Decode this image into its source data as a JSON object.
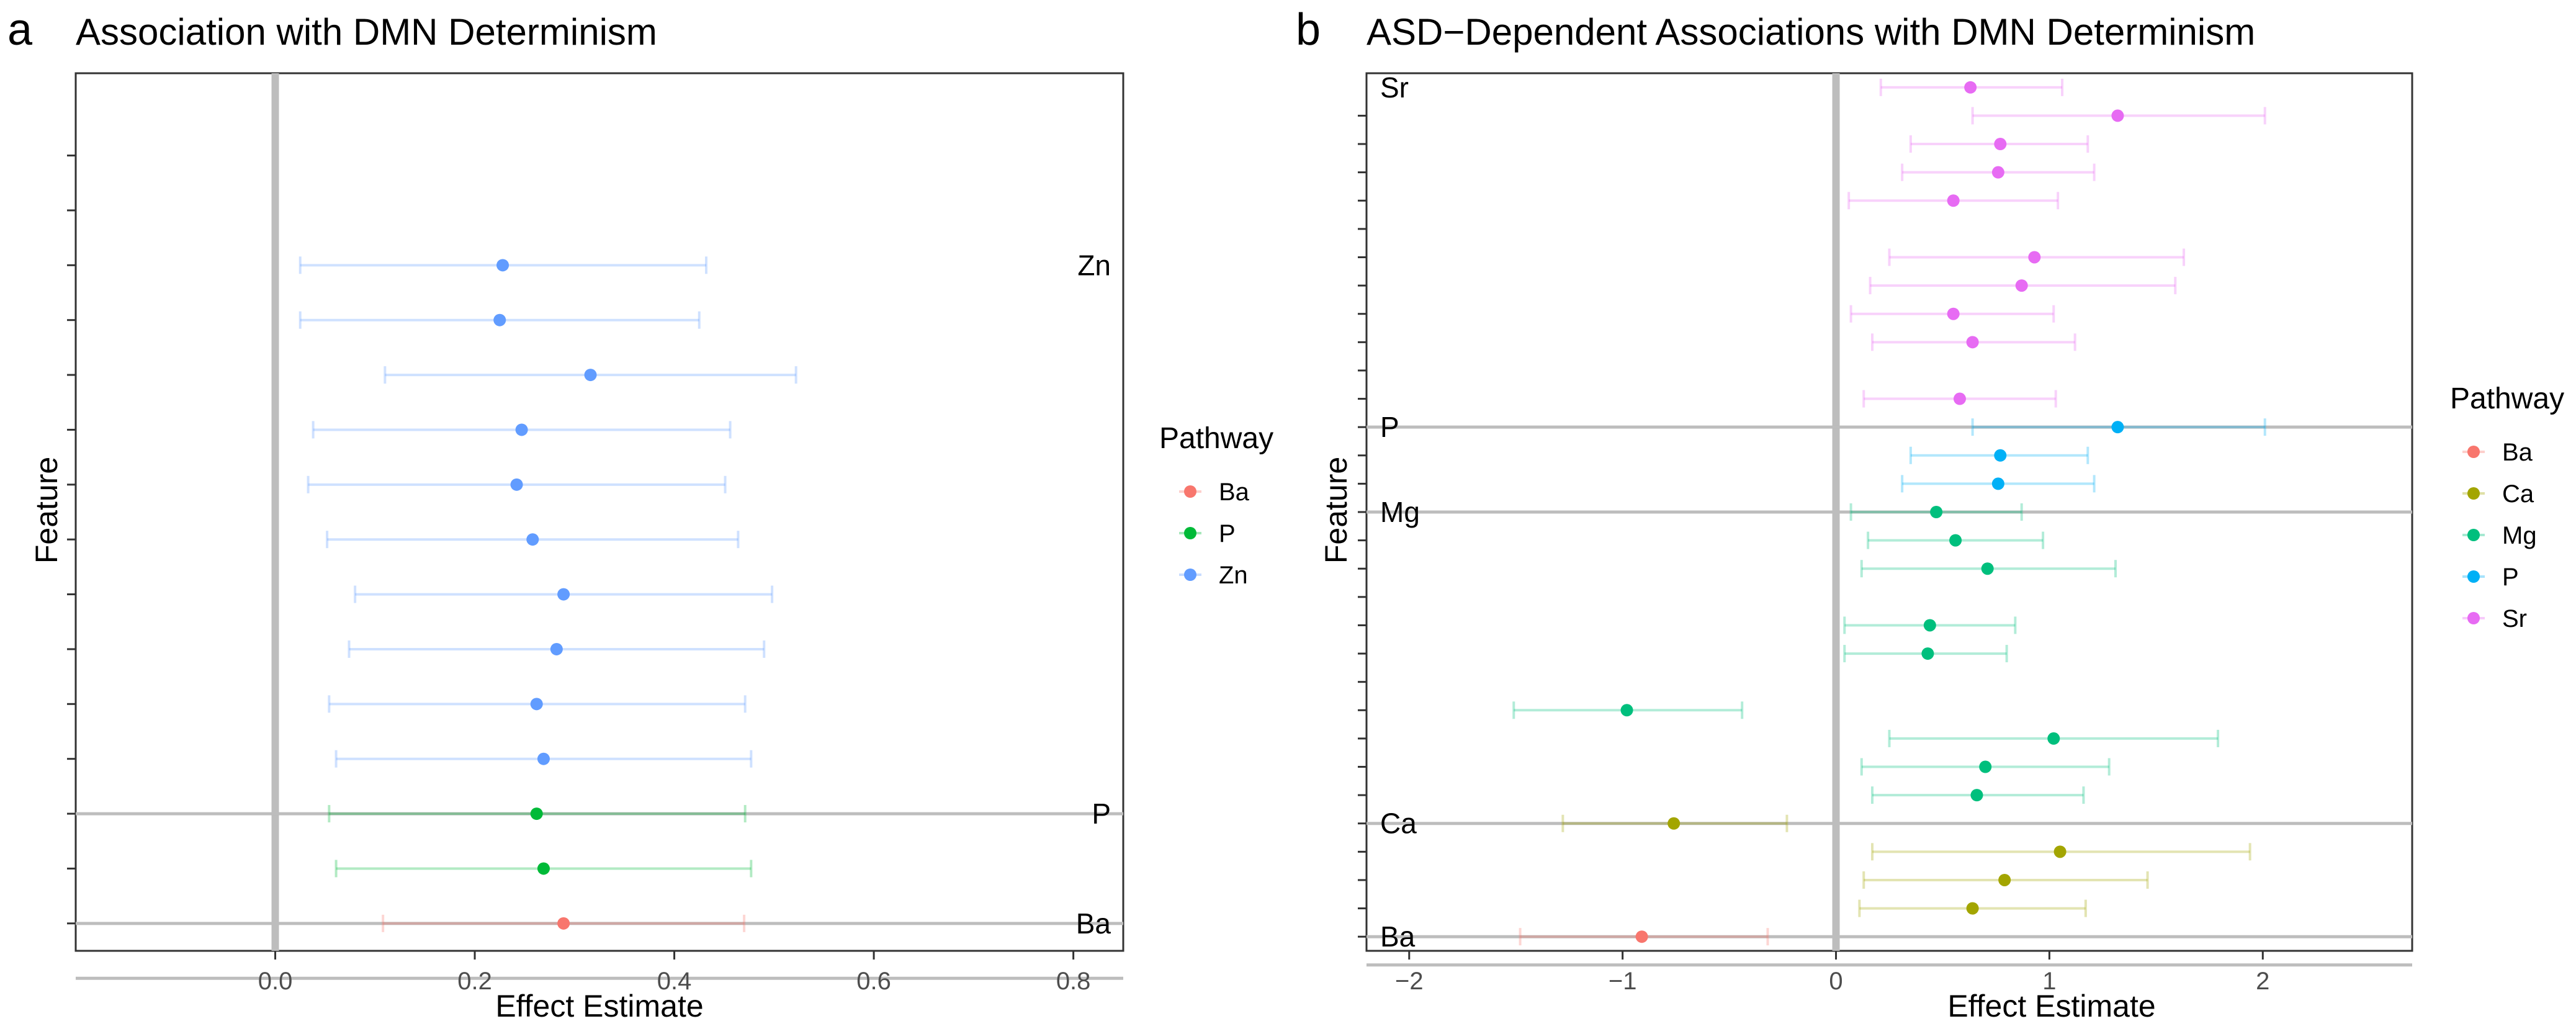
{
  "chart_data": [
    {
      "panel_label": "a",
      "type": "forest",
      "title": "Association with DMN Determinism",
      "xlabel": "Effect Estimate",
      "ylabel": "Feature",
      "xlim": [
        -0.2,
        0.85
      ],
      "xticks": [
        0.0,
        0.2,
        0.4,
        0.6,
        0.8
      ],
      "xtick_labels": [
        "0.0",
        "0.2",
        "0.4",
        "0.6",
        "0.8"
      ],
      "reference_line": 0,
      "legend": {
        "title": "Pathway",
        "entries": [
          {
            "name": "Ba",
            "color": "#F8766D"
          },
          {
            "name": "P",
            "color": "#00BA38"
          },
          {
            "name": "Zn",
            "color": "#619CFF"
          }
        ]
      },
      "groups": [
        {
          "name": "Zn",
          "color": "#619CFF",
          "points": [
            {
              "estimate": 0.228,
              "low": 0.025,
              "high": 0.432
            },
            {
              "estimate": 0.225,
              "low": 0.025,
              "high": 0.425
            },
            {
              "estimate": 0.316,
              "low": 0.11,
              "high": 0.522
            },
            {
              "estimate": 0.247,
              "low": 0.038,
              "high": 0.456
            },
            {
              "estimate": 0.242,
              "low": 0.033,
              "high": 0.451
            },
            {
              "estimate": 0.258,
              "low": 0.052,
              "high": 0.464
            },
            {
              "estimate": 0.289,
              "low": 0.08,
              "high": 0.498
            },
            {
              "estimate": 0.282,
              "low": 0.074,
              "high": 0.49
            },
            {
              "estimate": 0.262,
              "low": 0.054,
              "high": 0.471
            },
            {
              "estimate": 0.269,
              "low": 0.061,
              "high": 0.477
            }
          ]
        },
        {
          "name": "P",
          "color": "#00BA38",
          "points": [
            {
              "estimate": 0.262,
              "low": 0.054,
              "high": 0.471
            },
            {
              "estimate": 0.269,
              "low": 0.061,
              "high": 0.477
            }
          ]
        },
        {
          "name": "Ba",
          "color": "#F8766D",
          "points": [
            {
              "estimate": 0.289,
              "low": 0.108,
              "high": 0.47
            }
          ]
        }
      ]
    },
    {
      "panel_label": "b",
      "type": "forest",
      "title": "ASD−Dependent Associations with DMN Determinism",
      "xlabel": "Effect Estimate",
      "ylabel": "Feature",
      "xlim": [
        -2.2,
        2.7
      ],
      "xticks": [
        -2,
        -1,
        0,
        1,
        2
      ],
      "xtick_labels": [
        "−2",
        "−1",
        "0",
        "1",
        "2"
      ],
      "reference_line": 0,
      "legend": {
        "title": "Pathway",
        "entries": [
          {
            "name": "Ba",
            "color": "#F8766D"
          },
          {
            "name": "Ca",
            "color": "#A3A500"
          },
          {
            "name": "Mg",
            "color": "#00BF7D"
          },
          {
            "name": "P",
            "color": "#00B0F6"
          },
          {
            "name": "Sr",
            "color": "#E76BF3"
          }
        ]
      },
      "groups": [
        {
          "name": "Sr",
          "color": "#E76BF3",
          "points": [
            {
              "estimate": 0.63,
              "low": 0.21,
              "high": 1.06
            },
            {
              "estimate": 1.32,
              "low": 0.64,
              "high": 2.01
            },
            {
              "estimate": 0.77,
              "low": 0.35,
              "high": 1.18
            },
            {
              "estimate": 0.76,
              "low": 0.31,
              "high": 1.21
            },
            {
              "estimate": 0.55,
              "low": 0.06,
              "high": 1.04
            },
            {
              "estimate": 0.93,
              "low": 0.25,
              "high": 1.63
            },
            {
              "estimate": 0.87,
              "low": 0.16,
              "high": 1.59
            },
            {
              "estimate": 0.55,
              "low": 0.07,
              "high": 1.02
            },
            {
              "estimate": 0.64,
              "low": 0.17,
              "high": 1.12
            },
            {
              "estimate": 0.58,
              "low": 0.13,
              "high": 1.03
            }
          ]
        },
        {
          "name": "P",
          "color": "#00B0F6",
          "points": [
            {
              "estimate": 1.32,
              "low": 0.64,
              "high": 2.01
            },
            {
              "estimate": 0.77,
              "low": 0.35,
              "high": 1.18
            },
            {
              "estimate": 0.76,
              "low": 0.31,
              "high": 1.21
            }
          ]
        },
        {
          "name": "Mg",
          "color": "#00BF7D",
          "points": [
            {
              "estimate": 0.47,
              "low": 0.07,
              "high": 0.87
            },
            {
              "estimate": 0.56,
              "low": 0.15,
              "high": 0.97
            },
            {
              "estimate": 0.71,
              "low": 0.12,
              "high": 1.31
            },
            {
              "estimate": 0.44,
              "low": 0.04,
              "high": 0.84
            },
            {
              "estimate": 0.43,
              "low": 0.04,
              "high": 0.8
            },
            {
              "estimate": -0.98,
              "low": -1.51,
              "high": -0.44
            },
            {
              "estimate": 1.02,
              "low": 0.25,
              "high": 1.79
            },
            {
              "estimate": 0.7,
              "low": 0.12,
              "high": 1.28
            },
            {
              "estimate": 0.66,
              "low": 0.17,
              "high": 1.16
            }
          ]
        },
        {
          "name": "Ca",
          "color": "#A3A500",
          "points": [
            {
              "estimate": -0.76,
              "low": -1.28,
              "high": -0.23
            },
            {
              "estimate": 1.05,
              "low": 0.17,
              "high": 1.94
            },
            {
              "estimate": 0.79,
              "low": 0.13,
              "high": 1.46
            },
            {
              "estimate": 0.64,
              "low": 0.11,
              "high": 1.17
            }
          ]
        },
        {
          "name": "Ba",
          "color": "#F8766D",
          "points": [
            {
              "estimate": -0.91,
              "low": -1.48,
              "high": -0.32
            }
          ]
        }
      ]
    }
  ]
}
